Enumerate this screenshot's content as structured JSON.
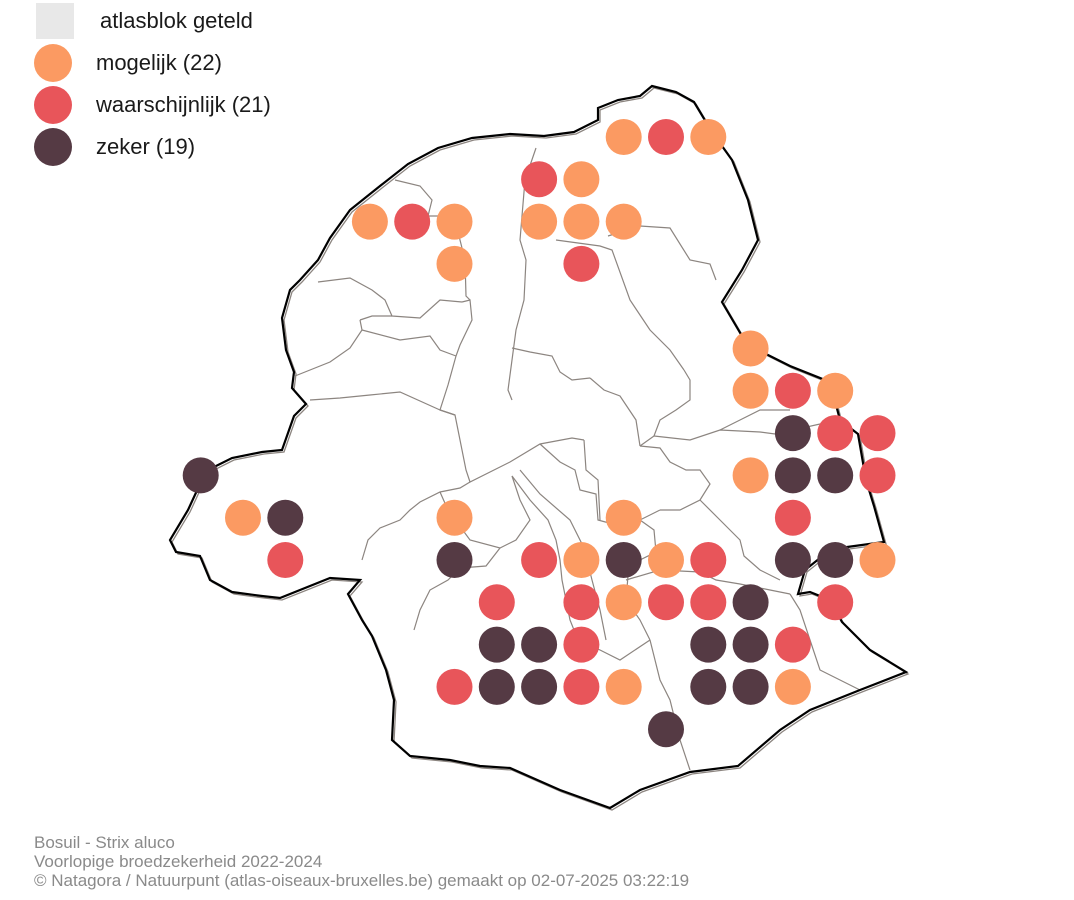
{
  "legend": [
    {
      "label": "atlasblok geteld",
      "color": "#e8e8e8",
      "shape": "square",
      "icon": "counted-block-square-icon"
    },
    {
      "label": "mogelijk (22)",
      "color": "#fb9a62",
      "shape": "circle",
      "icon": "possible-circle-icon"
    },
    {
      "label": "waarschijnlijk (21)",
      "color": "#e8555a",
      "shape": "circle",
      "icon": "probable-circle-icon"
    },
    {
      "label": "zeker (19)",
      "color": "#553a44",
      "shape": "circle",
      "icon": "confirmed-circle-icon"
    }
  ],
  "caption": {
    "species": "Bosuil - Strix aluco",
    "subtitle": "Voorlopige broedzekerheid 2022-2024",
    "credit": "© Natagora / Natuurpunt (atlas-oiseaux-bruxelles.be) gemaakt op 02-07-2025 03:22:19"
  },
  "colors": {
    "mogelijk": "#fb9a62",
    "waarschijnlijk": "#e8555a",
    "zeker": "#553a44",
    "outline": "#000000",
    "municipality_lines": "#8c8580"
  },
  "blocks": [
    {
      "col": 9,
      "row": 0,
      "status": "mogelijk"
    },
    {
      "col": 10,
      "row": 0,
      "status": "waarschijnlijk"
    },
    {
      "col": 11,
      "row": 0,
      "status": "mogelijk"
    },
    {
      "col": 7,
      "row": 1,
      "status": "waarschijnlijk"
    },
    {
      "col": 8,
      "row": 1,
      "status": "mogelijk"
    },
    {
      "col": 3,
      "row": 2,
      "status": "mogelijk"
    },
    {
      "col": 4,
      "row": 2,
      "status": "waarschijnlijk"
    },
    {
      "col": 5,
      "row": 2,
      "status": "mogelijk"
    },
    {
      "col": 7,
      "row": 2,
      "status": "mogelijk"
    },
    {
      "col": 8,
      "row": 2,
      "status": "mogelijk"
    },
    {
      "col": 9,
      "row": 2,
      "status": "mogelijk"
    },
    {
      "col": 5,
      "row": 3,
      "status": "mogelijk"
    },
    {
      "col": 8,
      "row": 3,
      "status": "waarschijnlijk"
    },
    {
      "col": 12,
      "row": 5,
      "status": "mogelijk"
    },
    {
      "col": 12,
      "row": 6,
      "status": "mogelijk"
    },
    {
      "col": 13,
      "row": 6,
      "status": "waarschijnlijk"
    },
    {
      "col": 14,
      "row": 6,
      "status": "mogelijk"
    },
    {
      "col": 13,
      "row": 7,
      "status": "zeker"
    },
    {
      "col": 14,
      "row": 7,
      "status": "waarschijnlijk"
    },
    {
      "col": 15,
      "row": 7,
      "status": "waarschijnlijk"
    },
    {
      "col": -1,
      "row": 8,
      "status": "zeker"
    },
    {
      "col": 12,
      "row": 8,
      "status": "mogelijk"
    },
    {
      "col": 13,
      "row": 8,
      "status": "zeker"
    },
    {
      "col": 14,
      "row": 8,
      "status": "zeker"
    },
    {
      "col": 15,
      "row": 8,
      "status": "waarschijnlijk"
    },
    {
      "col": 0,
      "row": 9,
      "status": "mogelijk"
    },
    {
      "col": 1,
      "row": 9,
      "status": "zeker"
    },
    {
      "col": 5,
      "row": 9,
      "status": "mogelijk"
    },
    {
      "col": 9,
      "row": 9,
      "status": "mogelijk"
    },
    {
      "col": 13,
      "row": 9,
      "status": "waarschijnlijk"
    },
    {
      "col": 1,
      "row": 10,
      "status": "waarschijnlijk"
    },
    {
      "col": 5,
      "row": 10,
      "status": "zeker"
    },
    {
      "col": 7,
      "row": 10,
      "status": "waarschijnlijk"
    },
    {
      "col": 8,
      "row": 10,
      "status": "mogelijk"
    },
    {
      "col": 9,
      "row": 10,
      "status": "zeker"
    },
    {
      "col": 10,
      "row": 10,
      "status": "mogelijk"
    },
    {
      "col": 11,
      "row": 10,
      "status": "waarschijnlijk"
    },
    {
      "col": 13,
      "row": 10,
      "status": "zeker"
    },
    {
      "col": 14,
      "row": 10,
      "status": "zeker"
    },
    {
      "col": 15,
      "row": 10,
      "status": "mogelijk"
    },
    {
      "col": 6,
      "row": 11,
      "status": "waarschijnlijk"
    },
    {
      "col": 8,
      "row": 11,
      "status": "waarschijnlijk"
    },
    {
      "col": 9,
      "row": 11,
      "status": "mogelijk"
    },
    {
      "col": 10,
      "row": 11,
      "status": "waarschijnlijk"
    },
    {
      "col": 11,
      "row": 11,
      "status": "waarschijnlijk"
    },
    {
      "col": 12,
      "row": 11,
      "status": "zeker"
    },
    {
      "col": 14,
      "row": 11,
      "status": "waarschijnlijk"
    },
    {
      "col": 6,
      "row": 12,
      "status": "zeker"
    },
    {
      "col": 7,
      "row": 12,
      "status": "zeker"
    },
    {
      "col": 8,
      "row": 12,
      "status": "waarschijnlijk"
    },
    {
      "col": 11,
      "row": 12,
      "status": "zeker"
    },
    {
      "col": 12,
      "row": 12,
      "status": "zeker"
    },
    {
      "col": 13,
      "row": 12,
      "status": "waarschijnlijk"
    },
    {
      "col": 5,
      "row": 13,
      "status": "waarschijnlijk"
    },
    {
      "col": 6,
      "row": 13,
      "status": "zeker"
    },
    {
      "col": 7,
      "row": 13,
      "status": "zeker"
    },
    {
      "col": 8,
      "row": 13,
      "status": "waarschijnlijk"
    },
    {
      "col": 9,
      "row": 13,
      "status": "mogelijk"
    },
    {
      "col": 11,
      "row": 13,
      "status": "zeker"
    },
    {
      "col": 12,
      "row": 13,
      "status": "zeker"
    },
    {
      "col": 13,
      "row": 13,
      "status": "mogelijk"
    },
    {
      "col": 10,
      "row": 14,
      "status": "zeker"
    }
  ]
}
